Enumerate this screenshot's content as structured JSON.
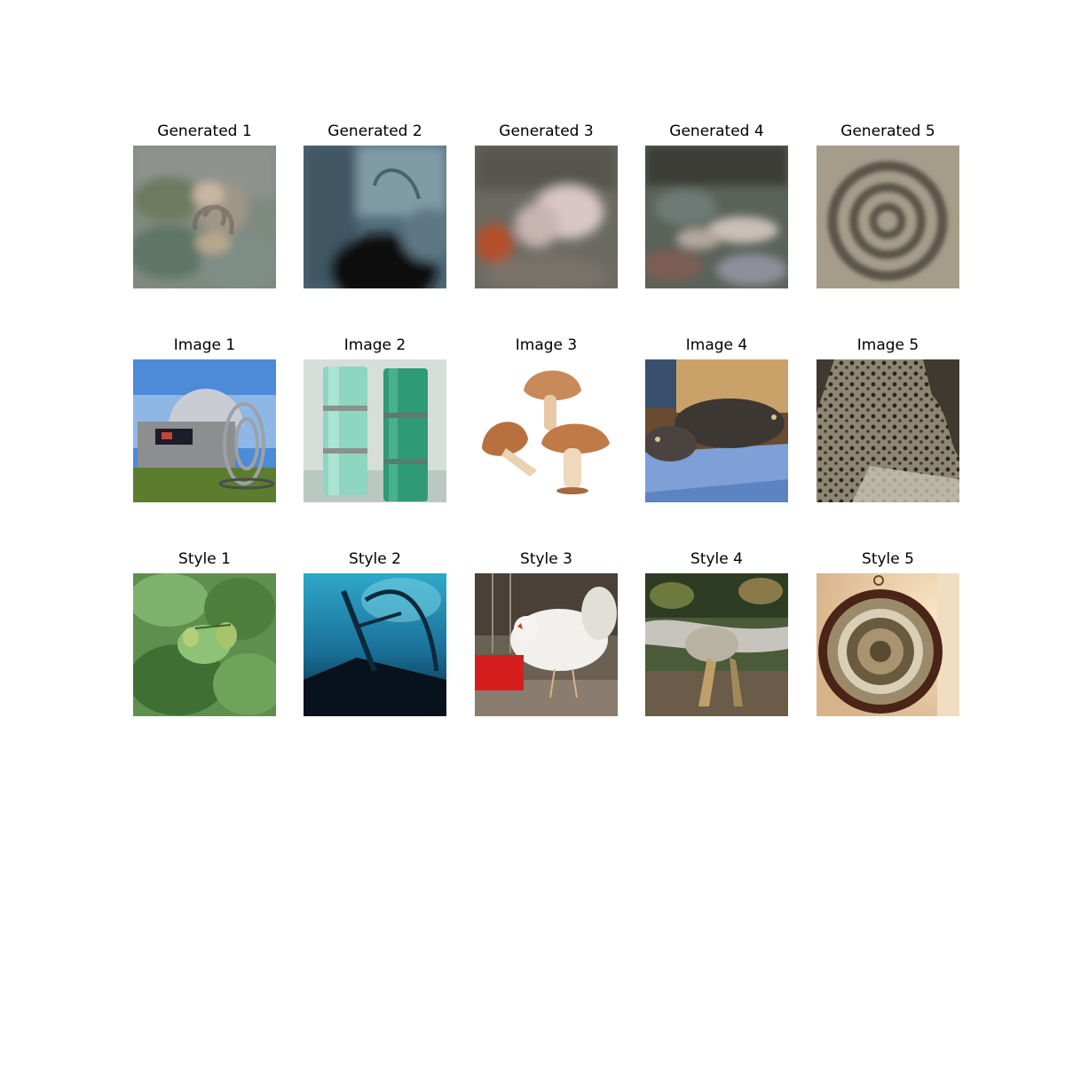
{
  "rows": [
    {
      "name": "generated",
      "titles": [
        "Generated 1",
        "Generated 2",
        "Generated 3",
        "Generated 4",
        "Generated 5"
      ]
    },
    {
      "name": "image",
      "titles": [
        "Image 1",
        "Image 2",
        "Image 3",
        "Image 4",
        "Image 5"
      ]
    },
    {
      "name": "style",
      "titles": [
        "Style 1",
        "Style 2",
        "Style 3",
        "Style 4",
        "Style 5"
      ]
    }
  ]
}
